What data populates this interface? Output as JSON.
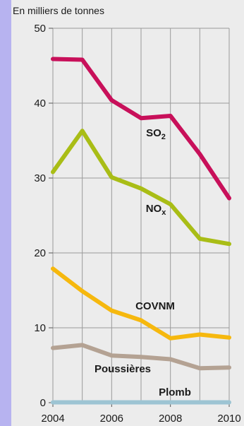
{
  "chart_data": {
    "type": "line",
    "unit_label": "En milliers de tonnes",
    "x": [
      2004,
      2005,
      2006,
      2007,
      2008,
      2009,
      2010
    ],
    "x_tick_labels": [
      "2004",
      "2006",
      "2008",
      "2010"
    ],
    "y_ticks": [
      0,
      10,
      20,
      30,
      40,
      50
    ],
    "xlim": [
      2004,
      2010
    ],
    "ylim": [
      0,
      50
    ],
    "grid": true,
    "series": [
      {
        "name": "SO",
        "subscript": "2",
        "color": "#c8105a",
        "values": [
          45.9,
          45.8,
          40.4,
          38.0,
          38.3,
          33.2,
          27.3
        ]
      },
      {
        "name": "NO",
        "subscript": "x",
        "color": "#a9bd16",
        "values": [
          30.8,
          36.3,
          30.1,
          28.6,
          26.5,
          21.9,
          21.2
        ]
      },
      {
        "name": "COVNM",
        "subscript": "",
        "color": "#f6b80e",
        "values": [
          17.9,
          14.9,
          12.3,
          11.0,
          8.6,
          9.1,
          8.7
        ]
      },
      {
        "name": "Poussières",
        "subscript": "",
        "color": "#b4a293",
        "values": [
          7.3,
          7.7,
          6.3,
          6.1,
          5.8,
          4.6,
          4.7
        ]
      },
      {
        "name": "Plomb",
        "subscript": "",
        "color": "#9dc4d3",
        "values": [
          0.05,
          0.05,
          0.05,
          0.05,
          0.05,
          0.05,
          0.05
        ]
      }
    ]
  }
}
